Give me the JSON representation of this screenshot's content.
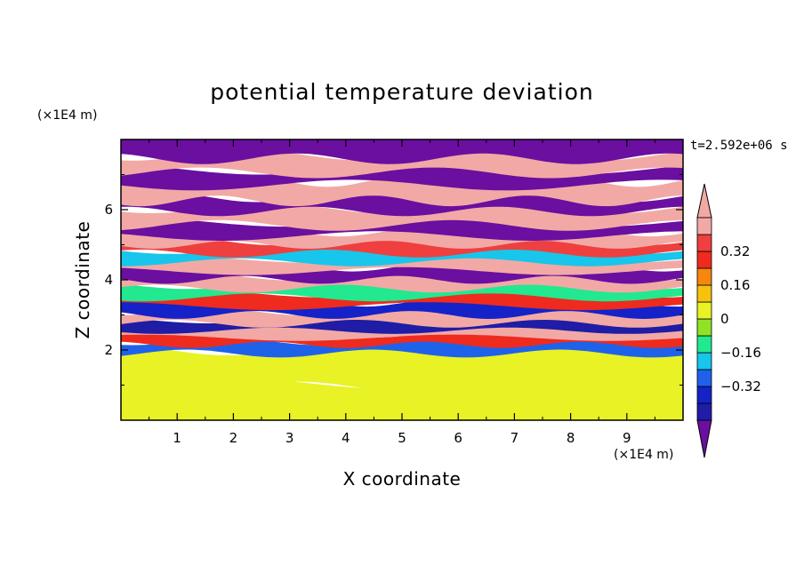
{
  "chart_data": {
    "type": "heatmap",
    "title": "potential temperature deviation",
    "xlabel": "X coordinate",
    "ylabel": "Z coordinate",
    "x_unit": "(×1E4 m)",
    "y_unit": "(×1E4 m)",
    "time_label": "t=2.592e+06 s",
    "xlim": [
      0,
      10
    ],
    "ylim": [
      0,
      8
    ],
    "x_ticks": [
      1,
      2,
      3,
      4,
      5,
      6,
      7,
      8,
      9
    ],
    "x_tick_labels": [
      "1",
      "2",
      "3",
      "4",
      "5",
      "6",
      "7",
      "8",
      "9"
    ],
    "y_ticks": [
      2,
      4,
      6
    ],
    "y_tick_labels": [
      "2",
      "4",
      "6"
    ],
    "colorbar": {
      "levels": [
        -0.48,
        -0.4,
        -0.32,
        -0.24,
        -0.16,
        -0.08,
        0,
        0.08,
        0.16,
        0.24,
        0.32,
        0.4,
        0.48
      ],
      "colors": [
        "#6a0fa0",
        "#1f1ca6",
        "#1422c8",
        "#1f62ea",
        "#17c6ea",
        "#22e890",
        "#8fe326",
        "#e8f225",
        "#f6c20b",
        "#f7860c",
        "#ee2b1e",
        "#ef3f3f",
        "#f2a9a5",
        "#f2a9a5"
      ],
      "tick_values": [
        0.32,
        0.16,
        0,
        -0.16,
        -0.32
      ],
      "tick_labels": [
        "0.32",
        "0.16",
        "0",
        "−0.16",
        "−0.32"
      ]
    },
    "field_bands": [
      {
        "z": [
          0.0,
          1.0
        ],
        "value": 0.0
      },
      {
        "z": [
          1.0,
          1.95
        ],
        "value": 0.04
      },
      {
        "z": [
          1.95,
          2.2
        ],
        "value": -0.3
      },
      {
        "z": [
          2.2,
          2.4
        ],
        "value": 0.3
      },
      {
        "z": [
          2.4,
          2.6
        ],
        "value": 0.5
      },
      {
        "z": [
          2.6,
          2.8
        ],
        "value": -0.45
      },
      {
        "z": [
          2.8,
          3.05
        ],
        "value": 0.5
      },
      {
        "z": [
          3.05,
          3.3
        ],
        "value": -0.35
      },
      {
        "z": [
          3.3,
          3.55
        ],
        "value": 0.25
      },
      {
        "z": [
          3.55,
          3.8
        ],
        "value": -0.1
      },
      {
        "z": [
          3.8,
          4.05
        ],
        "value": 0.5
      },
      {
        "z": [
          4.05,
          4.3
        ],
        "value": -0.5
      },
      {
        "z": [
          4.3,
          4.55
        ],
        "value": 0.5
      },
      {
        "z": [
          4.55,
          4.8
        ],
        "value": -0.2
      },
      {
        "z": [
          4.8,
          5.05
        ],
        "value": 0.35
      },
      {
        "z": [
          5.05,
          5.3
        ],
        "value": 0.5
      },
      {
        "z": [
          5.3,
          5.6
        ],
        "value": -0.5
      },
      {
        "z": [
          5.6,
          6.0
        ],
        "value": 0.5
      },
      {
        "z": [
          6.0,
          6.3
        ],
        "value": -0.5
      },
      {
        "z": [
          6.3,
          6.75
        ],
        "value": 0.5
      },
      {
        "z": [
          6.75,
          7.1
        ],
        "value": -0.5
      },
      {
        "z": [
          7.1,
          7.5
        ],
        "value": 0.5
      },
      {
        "z": [
          7.5,
          8.0
        ],
        "value": -0.5
      }
    ]
  }
}
